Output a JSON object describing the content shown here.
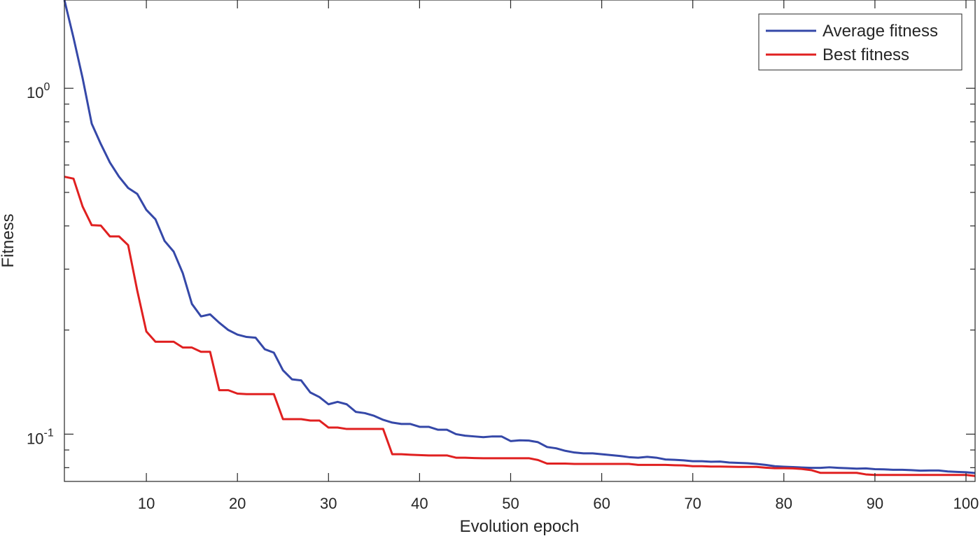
{
  "chart_data": {
    "type": "line",
    "title": "",
    "xlabel": "Evolution epoch",
    "ylabel": "Fitness",
    "xlim": [
      1,
      101
    ],
    "ylim": [
      0.073,
      1.8
    ],
    "yscale": "log",
    "grid": false,
    "legend_position": "top-right",
    "x_ticks": [
      10,
      20,
      30,
      40,
      50,
      60,
      70,
      80,
      90,
      100
    ],
    "x_tick_labels": [
      "10",
      "20",
      "30",
      "40",
      "50",
      "60",
      "70",
      "80",
      "90",
      "100"
    ],
    "y_major_ticks": [
      {
        "value": 1,
        "base": "10",
        "exp": "0"
      },
      {
        "value": 0.1,
        "base": "10",
        "exp": "-1"
      }
    ],
    "y_minor_ticks": [
      0.08,
      0.09,
      0.2,
      0.3,
      0.4,
      0.5,
      0.6,
      0.7,
      0.8,
      0.9
    ],
    "x": [
      1,
      2,
      3,
      4,
      5,
      6,
      7,
      8,
      9,
      10,
      11,
      12,
      13,
      14,
      15,
      16,
      17,
      18,
      19,
      20,
      21,
      22,
      23,
      24,
      25,
      26,
      27,
      28,
      29,
      30,
      31,
      32,
      33,
      34,
      35,
      36,
      37,
      38,
      39,
      40,
      41,
      42,
      43,
      44,
      45,
      46,
      47,
      48,
      49,
      50,
      51,
      52,
      53,
      54,
      55,
      56,
      57,
      58,
      59,
      60,
      61,
      62,
      63,
      64,
      65,
      66,
      67,
      68,
      69,
      70,
      71,
      72,
      73,
      74,
      75,
      76,
      77,
      78,
      79,
      80,
      81,
      82,
      83,
      84,
      85,
      86,
      87,
      88,
      89,
      90,
      91,
      92,
      93,
      94,
      95,
      96,
      97,
      98,
      99,
      100,
      101
    ],
    "series": [
      {
        "name": "Average fitness",
        "color": "#3548a8",
        "values": [
          1.8,
          1.4,
          1.07,
          0.79,
          0.69,
          0.61,
          0.555,
          0.515,
          0.495,
          0.445,
          0.418,
          0.362,
          0.337,
          0.292,
          0.238,
          0.219,
          0.222,
          0.21,
          0.2,
          0.194,
          0.191,
          0.19,
          0.176,
          0.172,
          0.153,
          0.144,
          0.143,
          0.132,
          0.128,
          0.122,
          0.124,
          0.122,
          0.116,
          0.115,
          0.113,
          0.11,
          0.108,
          0.107,
          0.107,
          0.105,
          0.105,
          0.103,
          0.103,
          0.1,
          0.099,
          0.0985,
          0.098,
          0.0985,
          0.0985,
          0.0955,
          0.096,
          0.0958,
          0.0948,
          0.0918,
          0.091,
          0.0895,
          0.0885,
          0.088,
          0.088,
          0.0875,
          0.087,
          0.0865,
          0.0858,
          0.0855,
          0.086,
          0.0855,
          0.0845,
          0.0843,
          0.084,
          0.0835,
          0.0835,
          0.0832,
          0.0833,
          0.0828,
          0.0826,
          0.0824,
          0.082,
          0.0815,
          0.0808,
          0.0805,
          0.0803,
          0.0801,
          0.0799,
          0.0799,
          0.0802,
          0.0799,
          0.0797,
          0.0795,
          0.0796,
          0.0792,
          0.0791,
          0.0789,
          0.0789,
          0.0787,
          0.0784,
          0.0785,
          0.0785,
          0.078,
          0.0778,
          0.0776,
          0.0772
        ]
      },
      {
        "name": "Best fitness",
        "color": "#e02020",
        "values": [
          0.555,
          0.548,
          0.455,
          0.402,
          0.401,
          0.373,
          0.373,
          0.352,
          0.26,
          0.198,
          0.185,
          0.185,
          0.185,
          0.178,
          0.178,
          0.173,
          0.173,
          0.134,
          0.134,
          0.131,
          0.1305,
          0.1305,
          0.1305,
          0.1305,
          0.1105,
          0.1105,
          0.1105,
          0.1095,
          0.1095,
          0.1045,
          0.1045,
          0.1035,
          0.1035,
          0.1035,
          0.1035,
          0.1035,
          0.0875,
          0.0875,
          0.0872,
          0.087,
          0.0868,
          0.0868,
          0.0868,
          0.0855,
          0.0855,
          0.0853,
          0.0852,
          0.0852,
          0.0852,
          0.0852,
          0.0852,
          0.0852,
          0.0842,
          0.0822,
          0.0822,
          0.0822,
          0.082,
          0.082,
          0.082,
          0.082,
          0.082,
          0.082,
          0.082,
          0.0815,
          0.0815,
          0.0815,
          0.0815,
          0.0813,
          0.0812,
          0.0808,
          0.0808,
          0.0806,
          0.0806,
          0.0805,
          0.0804,
          0.0804,
          0.0804,
          0.08,
          0.0797,
          0.0797,
          0.0796,
          0.0793,
          0.0787,
          0.0773,
          0.0773,
          0.0773,
          0.0773,
          0.0773,
          0.0765,
          0.0762,
          0.0762,
          0.0762,
          0.0762,
          0.0762,
          0.0762,
          0.0762,
          0.0762,
          0.0762,
          0.0762,
          0.0762,
          0.0757
        ]
      }
    ]
  }
}
